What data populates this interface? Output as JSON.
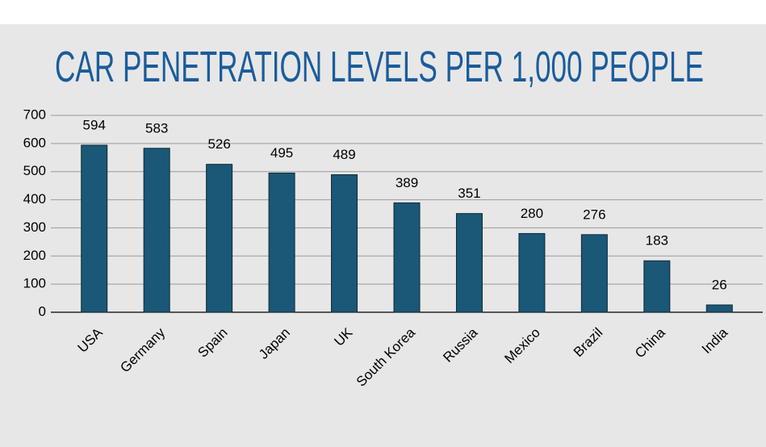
{
  "chart_data": {
    "type": "bar",
    "title": "CAR PENETRATION LEVELS PER 1,000 PEOPLE",
    "categories": [
      "USA",
      "Germany",
      "Spain",
      "Japan",
      "UK",
      "South Korea",
      "Russia",
      "Mexico",
      "Brazil",
      "China",
      "India"
    ],
    "values": [
      594,
      583,
      526,
      495,
      489,
      389,
      351,
      280,
      276,
      183,
      26
    ],
    "color": "#1b5776",
    "ylim": [
      0,
      700
    ],
    "yticks": [
      0,
      100,
      200,
      300,
      400,
      500,
      600,
      700
    ],
    "grid": true
  }
}
